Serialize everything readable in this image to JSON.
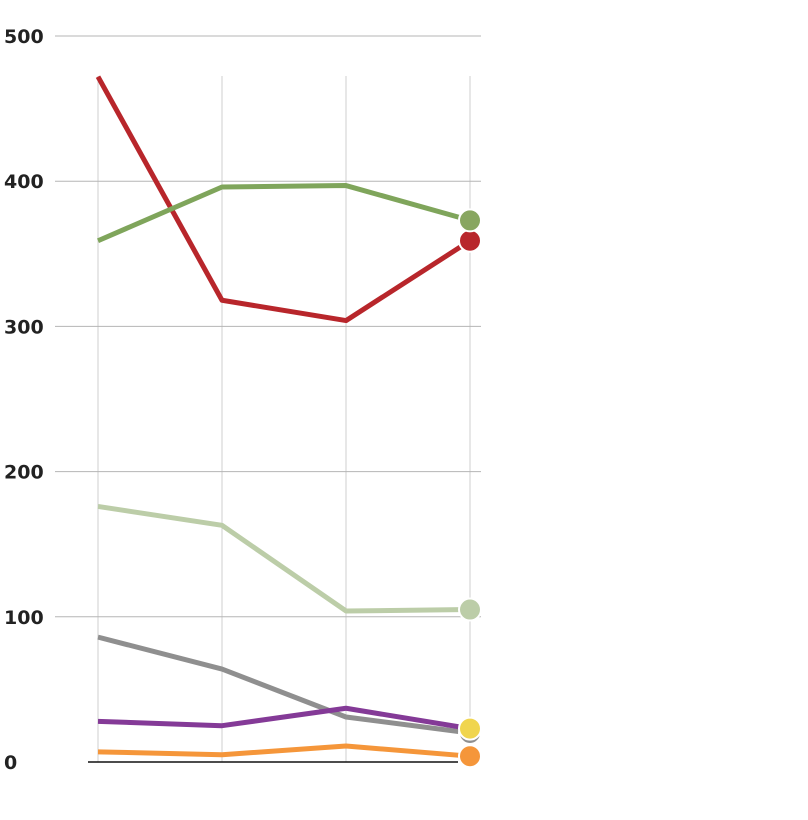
{
  "chart_data": {
    "type": "line",
    "title": "",
    "xlabel": "",
    "ylabel": "",
    "x": [
      1,
      2,
      3,
      4
    ],
    "ylim": [
      0,
      500
    ],
    "yticks": [
      "0",
      "100",
      "200",
      "300",
      "400",
      "500"
    ],
    "ytick_values": [
      0,
      100,
      200,
      300,
      400,
      500
    ],
    "grid": true,
    "legend": "none",
    "series": [
      {
        "name": "red",
        "color": "#b8262b",
        "dot_color": "#b8262b",
        "values": [
          472,
          318,
          304,
          359
        ]
      },
      {
        "name": "green",
        "color": "#7fa55b",
        "dot_color": "#88a660",
        "values": [
          359,
          396,
          397,
          373
        ]
      },
      {
        "name": "light-green",
        "color": "#bccda8",
        "dot_color": "#bccda8",
        "values": [
          176,
          163,
          104,
          105
        ]
      },
      {
        "name": "gray",
        "color": "#8f8f8f",
        "dot_color": "#8f8f8f",
        "values": [
          86,
          64,
          31,
          20
        ]
      },
      {
        "name": "purple",
        "color": "#843a97",
        "dot_color": "#f0d54e",
        "values": [
          28,
          25,
          37,
          23
        ]
      },
      {
        "name": "orange",
        "color": "#f5963a",
        "dot_color": "#f5963a",
        "values": [
          7,
          5,
          11,
          4
        ]
      }
    ]
  }
}
